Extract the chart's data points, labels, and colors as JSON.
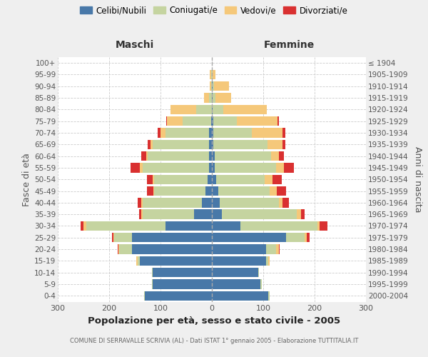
{
  "age_groups": [
    "0-4",
    "5-9",
    "10-14",
    "15-19",
    "20-24",
    "25-29",
    "30-34",
    "35-39",
    "40-44",
    "45-49",
    "50-54",
    "55-59",
    "60-64",
    "65-69",
    "70-74",
    "75-79",
    "80-84",
    "85-89",
    "90-94",
    "95-99",
    "100+"
  ],
  "birth_years": [
    "2000-2004",
    "1995-1999",
    "1990-1994",
    "1985-1989",
    "1980-1984",
    "1975-1979",
    "1970-1974",
    "1965-1969",
    "1960-1964",
    "1955-1959",
    "1950-1954",
    "1945-1949",
    "1940-1944",
    "1935-1939",
    "1930-1934",
    "1925-1929",
    "1920-1924",
    "1915-1919",
    "1910-1914",
    "1905-1909",
    "≤ 1904"
  ],
  "maschi": {
    "celibi": [
      130,
      115,
      115,
      140,
      155,
      155,
      90,
      35,
      20,
      12,
      8,
      5,
      5,
      5,
      5,
      2,
      0,
      0,
      0,
      0,
      0
    ],
    "coniugati": [
      2,
      2,
      2,
      5,
      25,
      35,
      155,
      100,
      115,
      100,
      105,
      130,
      120,
      110,
      85,
      55,
      30,
      5,
      2,
      2,
      0
    ],
    "vedovi": [
      0,
      0,
      0,
      2,
      2,
      2,
      5,
      2,
      2,
      2,
      2,
      5,
      3,
      5,
      10,
      30,
      50,
      10,
      2,
      2,
      0
    ],
    "divorziati": [
      0,
      0,
      0,
      0,
      2,
      2,
      5,
      5,
      8,
      12,
      12,
      18,
      10,
      5,
      5,
      2,
      0,
      0,
      0,
      0,
      0
    ]
  },
  "femmine": {
    "nubili": [
      110,
      95,
      90,
      105,
      105,
      145,
      55,
      20,
      15,
      12,
      8,
      5,
      5,
      3,
      3,
      3,
      2,
      2,
      2,
      0,
      0
    ],
    "coniugate": [
      2,
      2,
      2,
      5,
      20,
      35,
      150,
      145,
      115,
      100,
      95,
      120,
      110,
      105,
      75,
      45,
      20,
      5,
      2,
      2,
      0
    ],
    "vedove": [
      0,
      0,
      0,
      2,
      5,
      5,
      5,
      8,
      8,
      15,
      15,
      15,
      15,
      30,
      60,
      80,
      85,
      30,
      30,
      5,
      0
    ],
    "divorziate": [
      0,
      0,
      0,
      0,
      2,
      5,
      15,
      8,
      12,
      18,
      18,
      20,
      10,
      5,
      5,
      2,
      0,
      0,
      0,
      0,
      0
    ]
  },
  "colors": {
    "celibi": "#4878a8",
    "coniugati": "#c5d4a0",
    "vedovi": "#f5c87a",
    "divorziati": "#d93030"
  },
  "xlim": 300,
  "title": "Popolazione per età, sesso e stato civile - 2005",
  "subtitle": "COMUNE DI SERRAVALLE SCRIVIA (AL) - Dati ISTAT 1° gennaio 2005 - Elaborazione TUTTITALIA.IT",
  "ylabel_left": "Fasce di età",
  "ylabel_right": "Anni di nascita",
  "xlabel_left": "Maschi",
  "xlabel_right": "Femmine",
  "bg_color": "#efefef",
  "plot_bg_color": "#ffffff"
}
